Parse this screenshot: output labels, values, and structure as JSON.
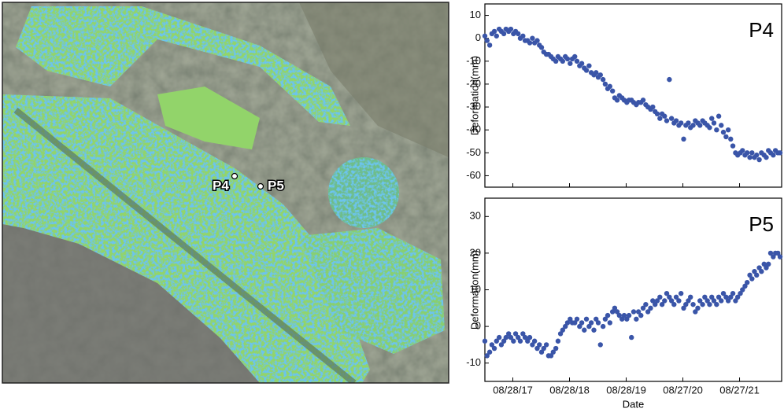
{
  "map": {
    "points": [
      {
        "label": "P4"
      },
      {
        "label": "P5"
      }
    ]
  },
  "chart_data": [
    {
      "type": "scatter",
      "title": "P4",
      "ylabel": "Deformation(mm)",
      "color": "#3a55a8",
      "xlim": [
        "2017-03-01",
        "2022-05-25"
      ],
      "ylim": [
        -65,
        15
      ],
      "yticks": [
        10,
        0,
        -10,
        -20,
        -30,
        -40,
        -50,
        -60
      ],
      "xticks": [
        "2017-08-28",
        "2018-08-28",
        "2019-08-28",
        "2020-08-27",
        "2021-08-27"
      ],
      "x": [
        "2017-03-01",
        "2017-03-15",
        "2017-04-01",
        "2017-04-15",
        "2017-05-01",
        "2017-05-15",
        "2017-06-01",
        "2017-06-15",
        "2017-07-01",
        "2017-07-15",
        "2017-08-01",
        "2017-08-15",
        "2017-09-01",
        "2017-09-15",
        "2017-10-01",
        "2017-10-15",
        "2017-11-01",
        "2017-11-15",
        "2017-12-01",
        "2017-12-15",
        "2018-01-01",
        "2018-01-15",
        "2018-02-01",
        "2018-02-15",
        "2018-03-01",
        "2018-03-15",
        "2018-04-01",
        "2018-04-15",
        "2018-05-01",
        "2018-05-15",
        "2018-06-01",
        "2018-06-15",
        "2018-07-01",
        "2018-07-15",
        "2018-08-01",
        "2018-08-15",
        "2018-09-01",
        "2018-09-15",
        "2018-10-01",
        "2018-10-15",
        "2018-11-01",
        "2018-11-15",
        "2018-12-01",
        "2018-12-15",
        "2019-01-01",
        "2019-01-15",
        "2019-02-01",
        "2019-02-15",
        "2019-03-01",
        "2019-03-15",
        "2019-04-01",
        "2019-04-15",
        "2019-05-01",
        "2019-05-15",
        "2019-06-01",
        "2019-06-15",
        "2019-07-01",
        "2019-07-15",
        "2019-08-01",
        "2019-08-15",
        "2019-09-01",
        "2019-09-15",
        "2019-10-01",
        "2019-10-15",
        "2019-11-01",
        "2019-11-15",
        "2019-12-01",
        "2019-12-15",
        "2020-01-01",
        "2020-01-15",
        "2020-02-01",
        "2020-02-15",
        "2020-03-01",
        "2020-03-15",
        "2020-04-01",
        "2020-04-15",
        "2020-05-01",
        "2020-05-15",
        "2020-06-01",
        "2020-06-15",
        "2020-07-01",
        "2020-07-15",
        "2020-08-01",
        "2020-08-15",
        "2020-09-01",
        "2020-09-15",
        "2020-10-01",
        "2020-10-15",
        "2020-11-01",
        "2020-11-15",
        "2020-12-01",
        "2020-12-15",
        "2021-01-01",
        "2021-01-15",
        "2021-02-01",
        "2021-02-15",
        "2021-03-01",
        "2021-03-15",
        "2021-04-01",
        "2021-04-15",
        "2021-05-01",
        "2021-05-15",
        "2021-06-01",
        "2021-06-15",
        "2021-07-01",
        "2021-07-15",
        "2021-08-01",
        "2021-08-15",
        "2021-09-01",
        "2021-09-15",
        "2021-10-01",
        "2021-10-15",
        "2021-11-01",
        "2021-11-15",
        "2021-12-01",
        "2021-12-15",
        "2022-01-01",
        "2022-01-15",
        "2022-02-01",
        "2022-02-15",
        "2022-03-01",
        "2022-03-15",
        "2022-04-01",
        "2022-04-15",
        "2022-05-01",
        "2022-05-15"
      ],
      "values": [
        1,
        -1,
        -3,
        2,
        3,
        1,
        4,
        3,
        2,
        4,
        3,
        4,
        2,
        3,
        2,
        0,
        1,
        -1,
        -1,
        -2,
        0,
        -2,
        -1,
        -3,
        -4,
        -6,
        -7,
        -7,
        -8,
        -9,
        -10,
        -8,
        -9,
        -10,
        -8,
        -9,
        -11,
        -9,
        -8,
        -10,
        -12,
        -11,
        -13,
        -14,
        -12,
        -15,
        -16,
        -15,
        -17,
        -16,
        -18,
        -20,
        -22,
        -21,
        -23,
        -26,
        -27,
        -25,
        -26,
        -27,
        -28,
        -27,
        -27,
        -28,
        -29,
        -28,
        -28,
        -27,
        -29,
        -30,
        -31,
        -30,
        -32,
        -33,
        -35,
        -33,
        -34,
        -36,
        -18,
        -35,
        -37,
        -36,
        -38,
        -37,
        -44,
        -38,
        -37,
        -39,
        -38,
        -36,
        -37,
        -38,
        -36,
        -37,
        -38,
        -39,
        -35,
        -37,
        -40,
        -34,
        -38,
        -41,
        -43,
        -40,
        -44,
        -47,
        -50,
        -51,
        -50,
        -49,
        -51,
        -50,
        -52,
        -50,
        -52,
        -51,
        -53,
        -50,
        -51,
        -52,
        -49,
        -50,
        -51,
        -49,
        -50,
        -50
      ]
    },
    {
      "type": "scatter",
      "title": "P5",
      "ylabel": "Deformation(mm)",
      "xlabel": "Date",
      "color": "#3a55a8",
      "xlim": [
        "2017-03-01",
        "2022-05-25"
      ],
      "ylim": [
        -15,
        35
      ],
      "yticks": [
        30,
        20,
        10,
        0,
        -10
      ],
      "xticks": [
        {
          "value": "2017-08-28",
          "label": "08/28/17"
        },
        {
          "value": "2018-08-28",
          "label": "08/28/18"
        },
        {
          "value": "2019-08-28",
          "label": "08/28/19"
        },
        {
          "value": "2020-08-27",
          "label": "08/27/20"
        },
        {
          "value": "2021-08-27",
          "label": "08/27/21"
        }
      ],
      "x": [
        "2017-03-01",
        "2017-03-15",
        "2017-04-01",
        "2017-04-15",
        "2017-05-01",
        "2017-05-15",
        "2017-06-01",
        "2017-06-15",
        "2017-07-01",
        "2017-07-15",
        "2017-08-01",
        "2017-08-15",
        "2017-09-01",
        "2017-09-15",
        "2017-10-01",
        "2017-10-15",
        "2017-11-01",
        "2017-11-15",
        "2017-12-01",
        "2017-12-15",
        "2018-01-01",
        "2018-01-15",
        "2018-02-01",
        "2018-02-15",
        "2018-03-01",
        "2018-03-15",
        "2018-04-01",
        "2018-04-15",
        "2018-05-01",
        "2018-05-15",
        "2018-06-01",
        "2018-06-15",
        "2018-07-01",
        "2018-07-15",
        "2018-08-01",
        "2018-08-15",
        "2018-09-01",
        "2018-09-15",
        "2018-10-01",
        "2018-10-15",
        "2018-11-01",
        "2018-11-15",
        "2018-12-01",
        "2018-12-15",
        "2019-01-01",
        "2019-01-15",
        "2019-02-01",
        "2019-02-15",
        "2019-03-01",
        "2019-03-15",
        "2019-04-01",
        "2019-04-15",
        "2019-05-01",
        "2019-05-15",
        "2019-06-01",
        "2019-06-15",
        "2019-07-01",
        "2019-07-15",
        "2019-08-01",
        "2019-08-15",
        "2019-09-01",
        "2019-09-15",
        "2019-10-01",
        "2019-10-15",
        "2019-11-01",
        "2019-11-15",
        "2019-12-01",
        "2019-12-15",
        "2020-01-01",
        "2020-01-15",
        "2020-02-01",
        "2020-02-15",
        "2020-03-01",
        "2020-03-15",
        "2020-04-01",
        "2020-04-15",
        "2020-05-01",
        "2020-05-15",
        "2020-06-01",
        "2020-06-15",
        "2020-07-01",
        "2020-07-15",
        "2020-08-01",
        "2020-08-15",
        "2020-09-01",
        "2020-09-15",
        "2020-10-01",
        "2020-10-15",
        "2020-11-01",
        "2020-11-15",
        "2020-12-01",
        "2020-12-15",
        "2021-01-01",
        "2021-01-15",
        "2021-02-01",
        "2021-02-15",
        "2021-03-01",
        "2021-03-15",
        "2021-04-01",
        "2021-04-15",
        "2021-05-01",
        "2021-05-15",
        "2021-06-01",
        "2021-06-15",
        "2021-07-01",
        "2021-07-15",
        "2021-08-01",
        "2021-08-15",
        "2021-09-01",
        "2021-09-15",
        "2021-10-01",
        "2021-10-15",
        "2021-11-01",
        "2021-11-15",
        "2021-12-01",
        "2021-12-15",
        "2022-01-01",
        "2022-01-15",
        "2022-02-01",
        "2022-02-15",
        "2022-03-01",
        "2022-03-15",
        "2022-04-01",
        "2022-04-15",
        "2022-05-01",
        "2022-05-15"
      ],
      "values": [
        -4,
        -8,
        -7,
        -5,
        -6,
        -4,
        -3,
        -5,
        -4,
        -3,
        -2,
        -3,
        -4,
        -2,
        -3,
        -4,
        -2,
        -3,
        -4,
        -3,
        -5,
        -4,
        -6,
        -5,
        -7,
        -6,
        -5,
        -8,
        -8,
        -7,
        -6,
        -4,
        -2,
        -1,
        0,
        1,
        2,
        1,
        1,
        2,
        0,
        1,
        -1,
        2,
        0,
        1,
        -1,
        2,
        1,
        -5,
        0,
        2,
        3,
        1,
        4,
        5,
        4,
        3,
        2,
        3,
        2,
        3,
        -3,
        4,
        2,
        4,
        3,
        5,
        6,
        4,
        5,
        7,
        6,
        7,
        8,
        6,
        7,
        9,
        8,
        7,
        6,
        8,
        7,
        9,
        5,
        6,
        7,
        8,
        6,
        4,
        5,
        7,
        6,
        8,
        7,
        6,
        8,
        7,
        6,
        8,
        7,
        9,
        8,
        7,
        8,
        9,
        7,
        8,
        9,
        10,
        11,
        12,
        14,
        13,
        15,
        14,
        16,
        15,
        17,
        16,
        17,
        20,
        19,
        20,
        20,
        19
      ]
    }
  ]
}
